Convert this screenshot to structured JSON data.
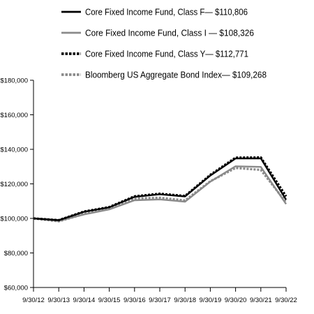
{
  "chart_data": {
    "type": "line",
    "x": [
      "9/30/12",
      "9/30/13",
      "9/30/14",
      "9/30/15",
      "9/30/16",
      "9/30/17",
      "9/30/18",
      "9/30/19",
      "9/30/20",
      "9/30/21",
      "9/30/22"
    ],
    "yticks": [
      "$60,000",
      "$80,000",
      "$100,000",
      "$120,000",
      "$140,000",
      "$160,000",
      "$180,000"
    ],
    "ylim": [
      60000,
      180000
    ],
    "grid": false,
    "legend_position": "top",
    "series": [
      {
        "name": "Core Fixed Income Fund, Class F— $110,806",
        "color": "#000000",
        "style": "solid",
        "values": [
          100000,
          99000,
          103800,
          106400,
          112500,
          114000,
          112700,
          124800,
          134700,
          134800,
          110806
        ]
      },
      {
        "name": "Core Fixed Income Fund, Class I — $108,326",
        "color": "#8a8a8a",
        "style": "solid",
        "values": [
          100000,
          98500,
          102300,
          105200,
          110500,
          111000,
          109700,
          121300,
          130200,
          129800,
          108326
        ]
      },
      {
        "name": "Core Fixed Income Fund, Class Y— $112,771",
        "color": "#000000",
        "style": "dotted",
        "values": [
          100000,
          99000,
          104000,
          106600,
          112800,
          114300,
          113000,
          125200,
          135200,
          135300,
          112771
        ]
      },
      {
        "name": "Bloomberg US Aggregate Bond Index— $109,268",
        "color": "#8a8a8a",
        "style": "dotted",
        "values": [
          100000,
          98300,
          102500,
          105700,
          111500,
          112000,
          110400,
          121500,
          129200,
          128100,
          109268
        ]
      }
    ]
  }
}
